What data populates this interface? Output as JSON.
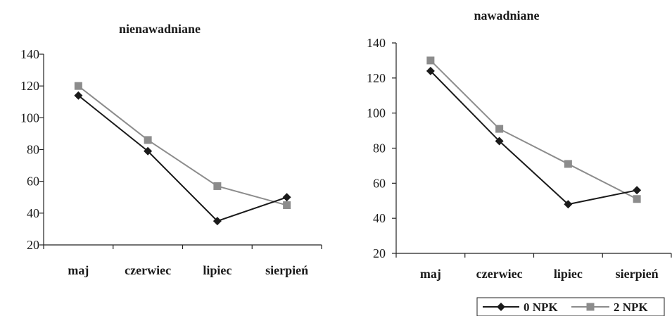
{
  "chart_data": [
    {
      "type": "line",
      "title": "nienawadniane",
      "categories": [
        "maj",
        "czerwiec",
        "lipiec",
        "sierpień"
      ],
      "ylim": [
        20,
        140
      ],
      "yticks": [
        20,
        40,
        60,
        80,
        100,
        120,
        140
      ],
      "series": [
        {
          "name": "0 NPK",
          "values": [
            114,
            79,
            35,
            50
          ],
          "color": "#1a1a1a",
          "marker": "diamond"
        },
        {
          "name": "2 NPK",
          "values": [
            120,
            86,
            57,
            45
          ],
          "color": "#8c8c8c",
          "marker": "square"
        }
      ]
    },
    {
      "type": "line",
      "title": "nawadniane",
      "categories": [
        "maj",
        "czerwiec",
        "lipiec",
        "sierpień"
      ],
      "ylim": [
        20,
        140
      ],
      "yticks": [
        20,
        40,
        60,
        80,
        100,
        120,
        140
      ],
      "series": [
        {
          "name": "0 NPK",
          "values": [
            124,
            84,
            48,
            56
          ],
          "color": "#1a1a1a",
          "marker": "diamond"
        },
        {
          "name": "2 NPK",
          "values": [
            130,
            91,
            71,
            51
          ],
          "color": "#8c8c8c",
          "marker": "square"
        }
      ]
    }
  ],
  "legend": {
    "entries": [
      {
        "label": "0 NPK",
        "color": "#1a1a1a",
        "marker": "diamond"
      },
      {
        "label": "2 NPK",
        "color": "#8c8c8c",
        "marker": "square"
      }
    ]
  }
}
